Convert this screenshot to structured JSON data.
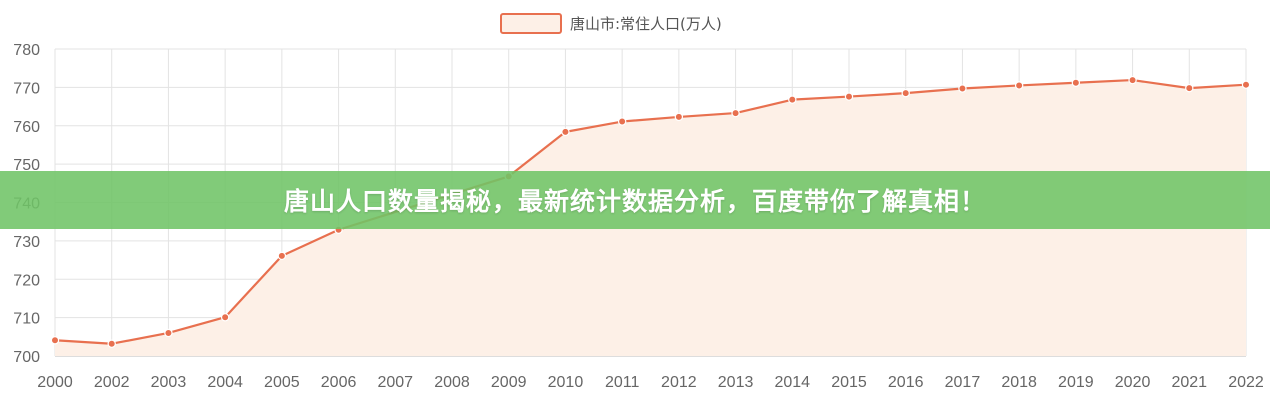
{
  "banner": {
    "headline": "唐山人口数量揭秘，最新统计数据分析，百度带你了解真相！"
  },
  "colors": {
    "line": "#e8704f",
    "fill": "#fdf0e7",
    "grid": "#e3e3e3",
    "banner": "#70c466"
  },
  "chart_data": {
    "type": "area",
    "legend": "唐山市:常住人口(万人)",
    "legend_position": "top-center",
    "grid": true,
    "categories": [
      "2000",
      "2002",
      "2003",
      "2004",
      "2005",
      "2006",
      "2007",
      "2008",
      "2009",
      "2010",
      "2011",
      "2012",
      "2013",
      "2014",
      "2015",
      "2016",
      "2017",
      "2018",
      "2019",
      "2020",
      "2021",
      "2022"
    ],
    "series": [
      {
        "name": "唐山市:常住人口(万人)",
        "values": [
          704.1,
          703.2,
          706.0,
          710.1,
          726.1,
          732.9,
          null,
          null,
          746.8,
          758.4,
          761.1,
          762.3,
          763.3,
          766.8,
          767.6,
          768.5,
          769.7,
          770.5,
          771.2,
          771.9,
          769.8,
          770.7
        ]
      }
    ],
    "ylim": [
      700,
      780
    ],
    "yticks": [
      700,
      710,
      720,
      730,
      740,
      750,
      760,
      770,
      780
    ]
  }
}
